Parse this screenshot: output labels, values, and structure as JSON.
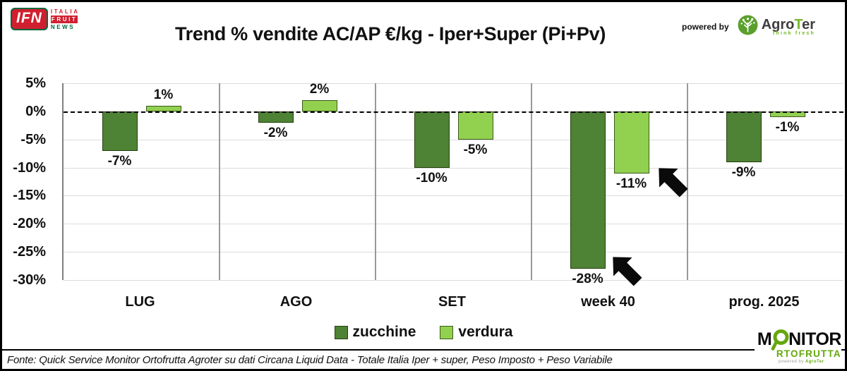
{
  "header": {
    "ifn_logo": {
      "acronym": "IFN",
      "line1": "ITALIA",
      "line2": "FRUIT",
      "line3": "NEWS"
    },
    "title": "Trend % vendite AC/AP €/kg -  Iper+Super (Pi+Pv)",
    "powered_by": "powered by",
    "agroter": {
      "name_pre": "Agro",
      "name_t": "T",
      "name_post": "er",
      "tagline": "think fresh"
    }
  },
  "chart_data": {
    "type": "bar",
    "title": "Trend % vendite AC/AP €/kg -  Iper+Super (Pi+Pv)",
    "categories": [
      "LUG",
      "AGO",
      "SET",
      "week 40",
      "prog. 2025"
    ],
    "series": [
      {
        "name": "zucchine",
        "color": "#4e8234",
        "border": "#24400f",
        "values": [
          -7,
          -2,
          -10,
          -28,
          -9
        ],
        "labels": [
          "-7%",
          "-2%",
          "-10%",
          "-28%",
          "-9%"
        ]
      },
      {
        "name": "verdura",
        "color": "#92d050",
        "border": "#3c5c1c",
        "values": [
          1,
          2,
          -5,
          -11,
          -1
        ],
        "labels": [
          "1%",
          "2%",
          "-5%",
          "-11%",
          "-1%"
        ]
      }
    ],
    "y_ticks": [
      "5%",
      "0%",
      "-5%",
      "-10%",
      "-15%",
      "-20%",
      "-25%",
      "-30%"
    ],
    "ylim": [
      -30,
      5
    ],
    "ylabel": "",
    "xlabel": "",
    "grid": true,
    "zero_line": "dashed-black",
    "legend_position": "bottom",
    "annotations": [
      {
        "type": "arrow-southwest",
        "target": "week 40 verdura -11%"
      },
      {
        "type": "arrow-southwest",
        "target": "week 40 zucchine -28%"
      }
    ]
  },
  "legend": {
    "items": [
      {
        "label": "zucchine",
        "color": "#4e8234"
      },
      {
        "label": "verdura",
        "color": "#92d050"
      }
    ]
  },
  "footer": {
    "source": "Fonte: Quick Service Monitor Ortofrutta Agroter su dati Circana Liquid Data - Totale Italia Iper + super, Peso Imposto + Peso Variabile",
    "monitor_logo": {
      "line1_pre": "M",
      "line1_post": "NITOR",
      "line2": "RTOFRUTTA",
      "powered_pre": "powered by ",
      "powered_post": "AgroTer"
    }
  }
}
